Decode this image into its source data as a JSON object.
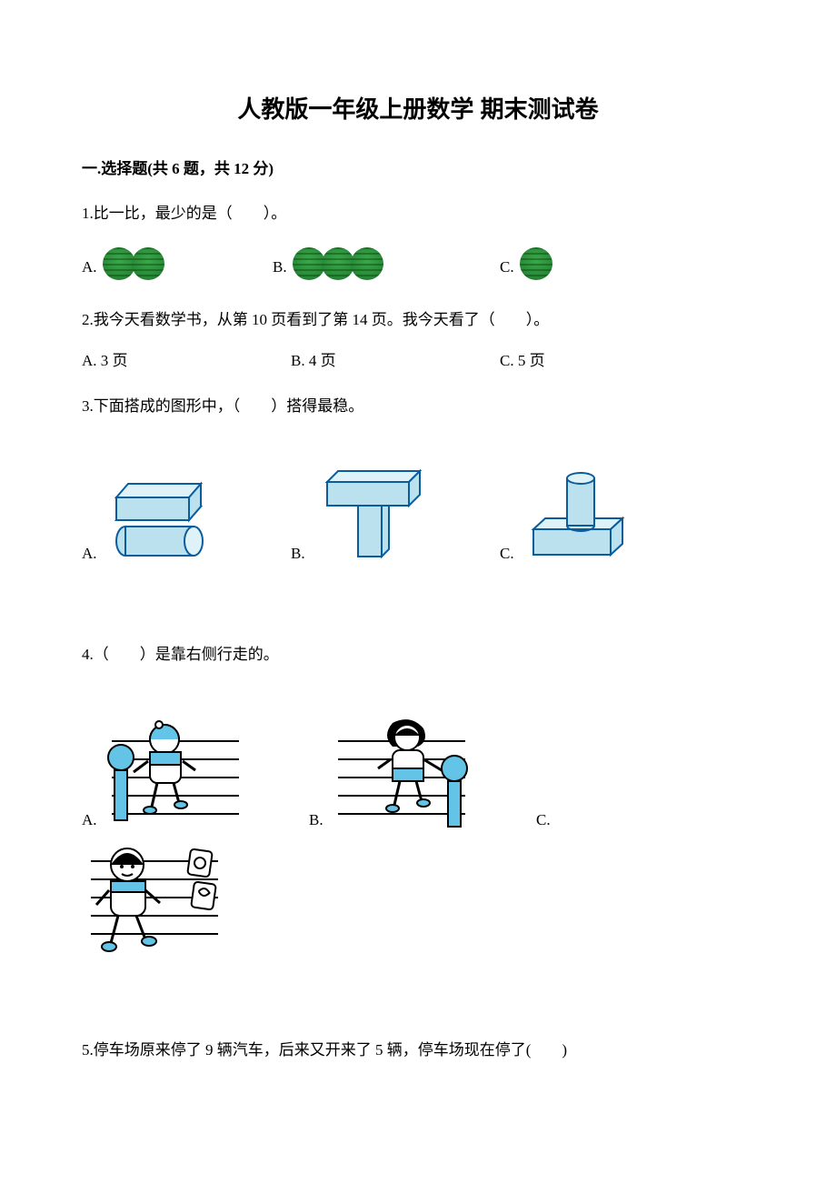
{
  "title": "人教版一年级上册数学  期末测试卷",
  "section1": {
    "header": "一.选择题(共 6 题，共 12 分)",
    "q1": {
      "text": "1.比一比，最少的是（　　）。",
      "A": "A.",
      "B": "B.",
      "C": "C.",
      "countA": 2,
      "countB": 3,
      "countC": 1,
      "melon_color": "#2a8c3a"
    },
    "q2": {
      "text": "2.我今天看数学书，从第 10 页看到了第 14 页。我今天看了（　　）。",
      "A": "A. 3 页",
      "B": "B. 4 页",
      "C": "C. 5 页"
    },
    "q3": {
      "text": "3.下面搭成的图形中，（　　）搭得最稳。",
      "A": "A.",
      "B": "B.",
      "C": "C.",
      "solid_fill": "#bce1ee",
      "solid_stroke": "#0a5d9c",
      "solid_fill_top": "#dff2f8"
    },
    "q4": {
      "text": "4.（　　）是靠右侧行走的。",
      "A": "A.",
      "B": "B.",
      "C": "C.",
      "accent": "#63c4e8",
      "line_color": "#000000"
    },
    "q5": {
      "text": "5.停车场原来停了 9 辆汽车，后来又开来了 5 辆，停车场现在停了(　　)"
    }
  }
}
